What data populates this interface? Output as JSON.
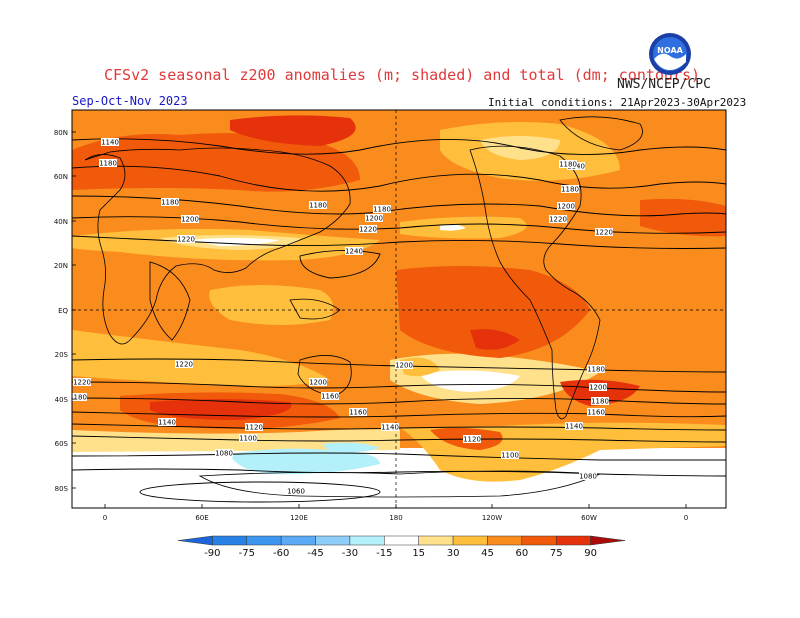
{
  "header": {
    "title": "CFSv2 seasonal z200 anomalies (m; shaded) and total (dm; contours)",
    "agency": "NWS/NCEP/CPC",
    "season": "Sep-Oct-Nov 2023",
    "initial_conditions": "Initial conditions: 21Apr2023-30Apr2023",
    "logo_text": "NOAA"
  },
  "axes": {
    "lat_labels": [
      "80N",
      "60N",
      "40N",
      "20N",
      "EQ",
      "20S",
      "40S",
      "60S",
      "80S"
    ],
    "lon_labels": [
      "0",
      "60E",
      "120E",
      "180",
      "120W",
      "60W",
      "0"
    ]
  },
  "contours": [
    {
      "label": "1140"
    },
    {
      "label": "1180"
    },
    {
      "label": "1180"
    },
    {
      "label": "1200"
    },
    {
      "label": "1220"
    },
    {
      "label": "1180"
    },
    {
      "label": "1180"
    },
    {
      "label": "1200"
    },
    {
      "label": "1220"
    },
    {
      "label": "1240"
    },
    {
      "label": "1140"
    },
    {
      "label": "1180"
    },
    {
      "label": "1180"
    },
    {
      "label": "1200"
    },
    {
      "label": "1220"
    },
    {
      "label": "1220"
    },
    {
      "label": "1220"
    },
    {
      "label": "1200"
    },
    {
      "label": "1180"
    },
    {
      "label": "1200"
    },
    {
      "label": "1160"
    },
    {
      "label": "1180"
    },
    {
      "label": "1140"
    },
    {
      "label": "1120"
    },
    {
      "label": "1100"
    },
    {
      "label": "1160"
    },
    {
      "label": "1140"
    },
    {
      "label": "1220"
    },
    {
      "label": "1200"
    },
    {
      "label": "1180"
    },
    {
      "label": "1160"
    },
    {
      "label": "1140"
    },
    {
      "label": "1120"
    },
    {
      "label": "1100"
    },
    {
      "label": "1080"
    },
    {
      "label": "1080"
    },
    {
      "label": "1060"
    }
  ],
  "colorbar": {
    "ticks": [
      "-90",
      "-75",
      "-60",
      "-45",
      "-30",
      "-15",
      "15",
      "30",
      "45",
      "60",
      "75",
      "90"
    ],
    "colors": [
      "#1e64dc",
      "#2882e6",
      "#3c96f0",
      "#5aaaf5",
      "#8ccdfa",
      "#b4f0fa",
      "#ffffff",
      "#ffe18c",
      "#ffbe3c",
      "#fa8c1e",
      "#f05a0a",
      "#e6320a",
      "#aa0a0a"
    ]
  }
}
